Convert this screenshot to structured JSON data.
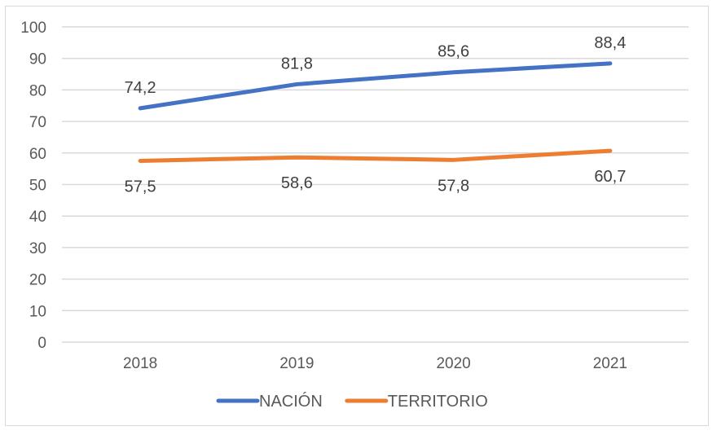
{
  "chart_data": {
    "type": "line",
    "title": "",
    "xlabel": "",
    "ylabel": "",
    "categories": [
      "2018",
      "2019",
      "2020",
      "2021"
    ],
    "series": [
      {
        "name": "NACIÓN",
        "color": "#4472C4",
        "values": [
          74.2,
          81.8,
          85.6,
          88.4
        ],
        "labels": [
          "74,2",
          "81,8",
          "85,6",
          "88,4"
        ],
        "label_position": "above"
      },
      {
        "name": "TERRITORIO",
        "color": "#ED7D31",
        "values": [
          57.5,
          58.6,
          57.8,
          60.7
        ],
        "labels": [
          "57,5",
          "58,6",
          "57,8",
          "60,7"
        ],
        "label_position": "below"
      }
    ],
    "ylim": [
      0,
      100
    ],
    "yticks": [
      "0",
      "10",
      "20",
      "30",
      "40",
      "50",
      "60",
      "70",
      "80",
      "90",
      "100"
    ],
    "ytick_values": [
      0,
      10,
      20,
      30,
      40,
      50,
      60,
      70,
      80,
      90,
      100
    ],
    "grid": true,
    "gridline_color": "#d9d9d9",
    "legend_position": "bottom"
  }
}
